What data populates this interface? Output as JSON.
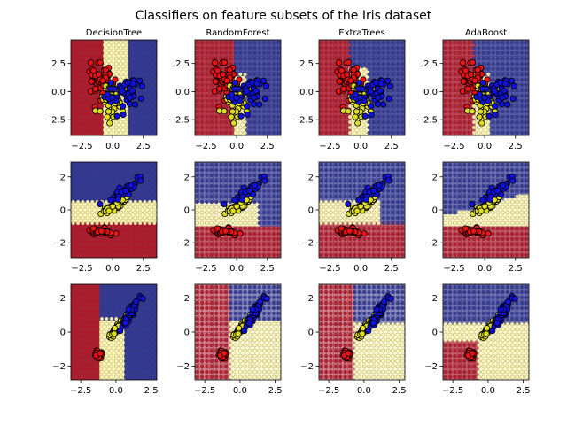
{
  "chart_data": {
    "type": "scatter",
    "title": "Classifiers on feature subsets of the Iris dataset",
    "columns": [
      "DecisionTree",
      "RandomForest",
      "ExtraTrees",
      "AdaBoost"
    ],
    "class_colors": {
      "setosa": "#ee1111",
      "versicolor": "#dddd22",
      "virginica": "#1111dd"
    },
    "region_colors": {
      "red": "#b2182b",
      "yellow": "#fff7b0",
      "blue": "#313695"
    },
    "rows": [
      {
        "xlim": [
          -3.4,
          3.6
        ],
        "ylim": [
          -3.9,
          4.6
        ],
        "xticks": [
          -2.5,
          0.0,
          2.5
        ],
        "yticks": [
          -2.5,
          0.0,
          2.5
        ],
        "xtick_labels": [
          "−2.5",
          "0.0",
          "2.5"
        ],
        "ytick_labels": [
          "−2.5",
          "0.0",
          "2.5"
        ]
      },
      {
        "xlim": [
          -3.4,
          3.6
        ],
        "ylim": [
          -2.9,
          2.9
        ],
        "xticks": [
          -2.5,
          0.0,
          2.5
        ],
        "yticks": [
          -2,
          0,
          2
        ],
        "xtick_labels": [
          "−2.5",
          "0.0",
          "2.5"
        ],
        "ytick_labels": [
          "−2",
          "0",
          "2"
        ]
      },
      {
        "xlim": [
          -3.2,
          2.9
        ],
        "ylim": [
          -2.8,
          2.8
        ],
        "xticks": [
          -2.5,
          0.0,
          2.5
        ],
        "yticks": [
          -2,
          0,
          2
        ],
        "xtick_labels": [
          "−2.5",
          "0.0",
          "2.5"
        ],
        "ytick_labels": [
          "−2",
          "0",
          "2"
        ]
      }
    ]
  }
}
